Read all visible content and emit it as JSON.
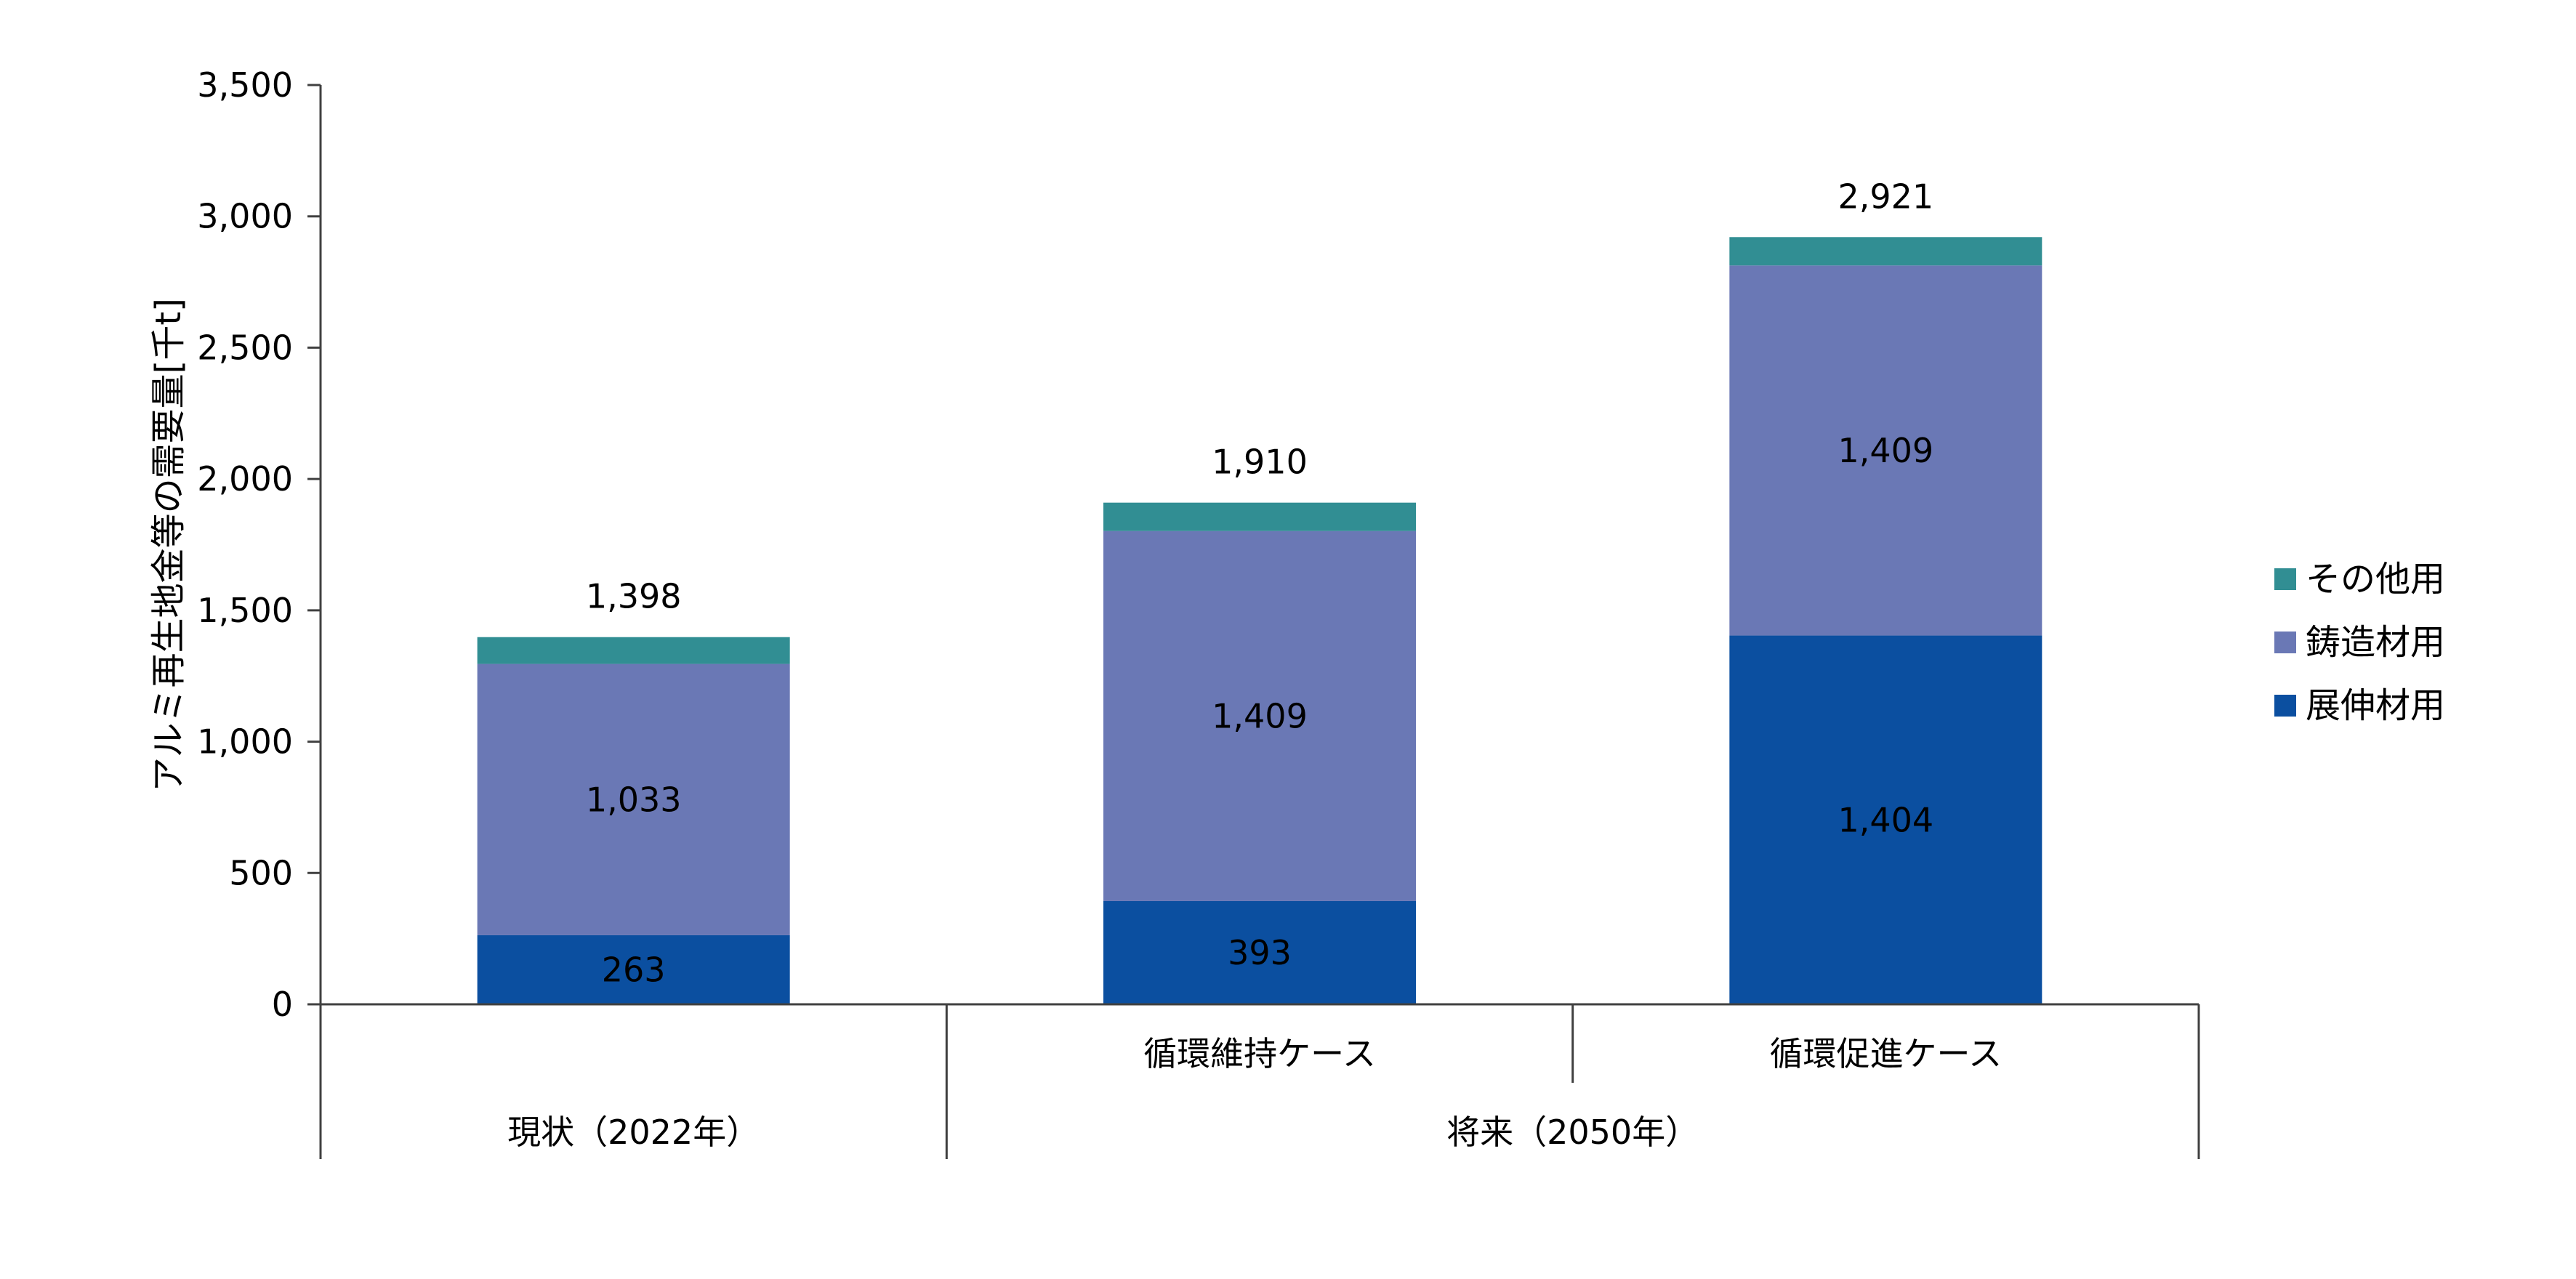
{
  "chart_data": {
    "type": "bar",
    "stacked": true,
    "categories": [
      "",
      "循環維持ケース",
      "循環促進ケース"
    ],
    "groups": [
      {
        "label": "現状（2022年）",
        "categories": [
          ""
        ]
      },
      {
        "label": "将来（2050年）",
        "categories": [
          "循環維持ケース",
          "循環促進ケース"
        ]
      }
    ],
    "series": [
      {
        "name": "展伸材用",
        "values": [
          263,
          393,
          1404
        ],
        "labels": [
          "263",
          "393",
          "1,404"
        ],
        "color": "#0B4FA0"
      },
      {
        "name": "鋳造材用",
        "values": [
          1033,
          1409,
          1409
        ],
        "labels": [
          "1,033",
          "1,409",
          "1,409"
        ],
        "color": "#6A78B5"
      },
      {
        "name": "その他用",
        "values": [
          102,
          108,
          108
        ],
        "labels": [
          "",
          "",
          ""
        ],
        "color": "#318E93"
      }
    ],
    "totals": [
      1398,
      1910,
      2921
    ],
    "total_labels": [
      "1,398",
      "1,910",
      "2,921"
    ],
    "ylabel": "アルミ再生地金等の需要量[千t]",
    "ylim": [
      0,
      3500
    ],
    "yticks": [
      0,
      500,
      1000,
      1500,
      2000,
      2500,
      3000,
      3500
    ],
    "ytick_labels": [
      "0",
      "500",
      "1,000",
      "1,500",
      "2,000",
      "2,500",
      "3,000",
      "3,500"
    ],
    "legend_order": [
      "その他用",
      "鋳造材用",
      "展伸材用"
    ],
    "legend_position": "right",
    "grid": false
  }
}
